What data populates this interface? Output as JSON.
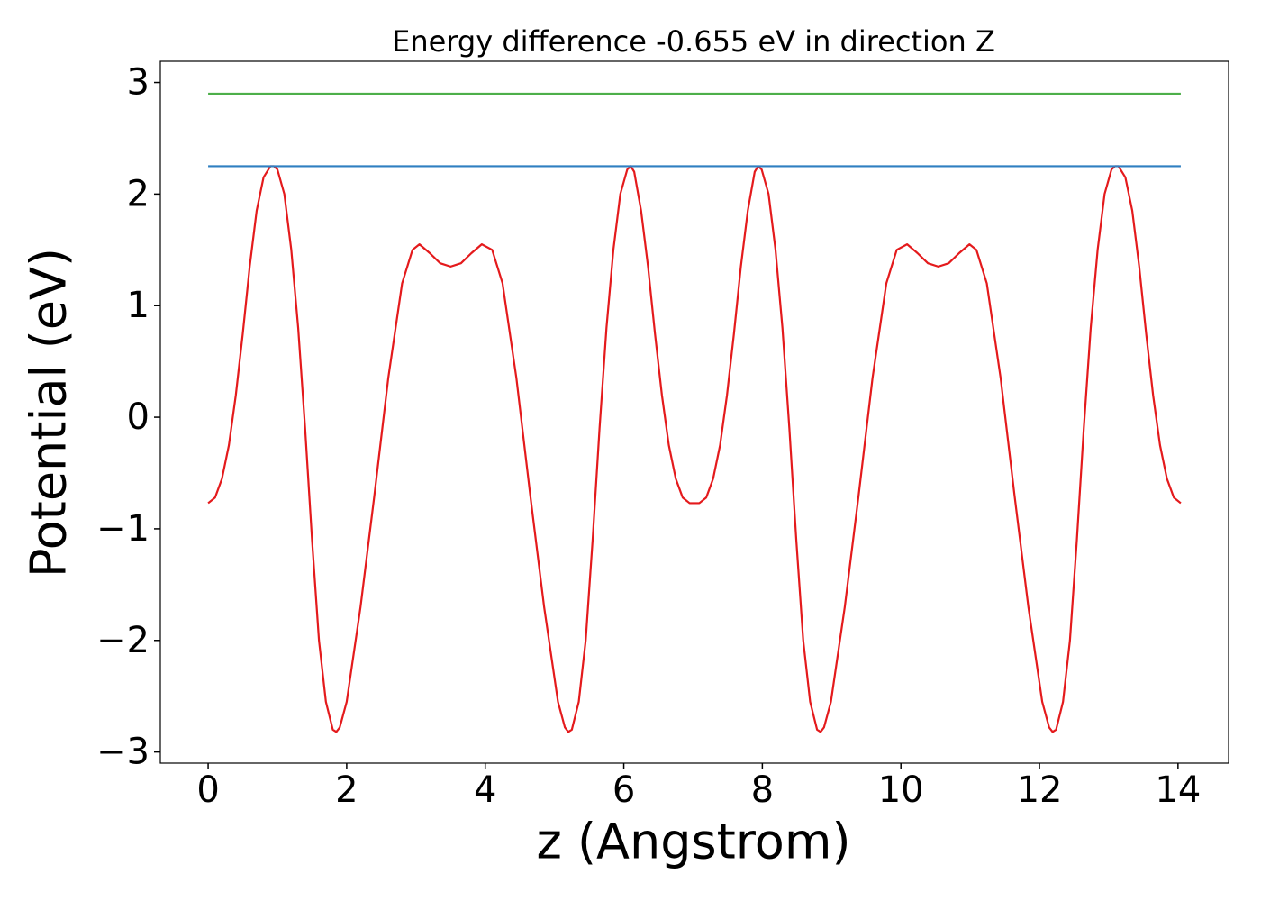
{
  "chart_data": {
    "type": "line",
    "title": "Energy difference -0.655 eV in direction Z",
    "xlabel": "z (Angstrom)",
    "ylabel": "Potential (eV)",
    "xlim": [
      -0.69,
      14.73
    ],
    "ylim": [
      -3.1,
      3.19
    ],
    "xticks": [
      0,
      2,
      4,
      6,
      8,
      10,
      12,
      14
    ],
    "yticks": [
      {
        "value": -3,
        "label": "−3"
      },
      {
        "value": -2,
        "label": "−2"
      },
      {
        "value": -1,
        "label": "−1"
      },
      0,
      1,
      2,
      3
    ],
    "grid": false,
    "series": [
      {
        "color": "#e41a1c",
        "x": [
          0,
          0.1,
          0.2,
          0.3,
          0.4,
          0.5,
          0.6,
          0.7,
          0.8,
          0.9,
          0.95,
          1.0,
          1.1,
          1.2,
          1.3,
          1.4,
          1.5,
          1.6,
          1.7,
          1.8,
          1.85,
          1.9,
          2.0,
          2.2,
          2.4,
          2.6,
          2.8,
          2.95,
          3.05,
          3.2,
          3.35,
          3.5,
          3.65,
          3.8,
          3.95,
          4.1,
          4.25,
          4.45,
          4.65,
          4.85,
          5.05,
          5.15,
          5.2,
          5.25,
          5.35,
          5.45,
          5.55,
          5.65,
          5.75,
          5.85,
          5.95,
          6.05,
          6.1,
          6.15,
          6.25,
          6.35,
          6.45,
          6.55,
          6.65,
          6.75,
          6.85,
          6.95,
          7.09,
          7.19,
          7.29,
          7.39,
          7.49,
          7.59,
          7.69,
          7.79,
          7.89,
          7.94,
          7.99,
          8.09,
          8.19,
          8.29,
          8.39,
          8.49,
          8.59,
          8.69,
          8.79,
          8.84,
          8.89,
          8.99,
          9.19,
          9.39,
          9.59,
          9.79,
          9.94,
          10.09,
          10.24,
          10.39,
          10.54,
          10.69,
          10.84,
          10.99,
          11.09,
          11.24,
          11.44,
          11.64,
          11.84,
          12.04,
          12.14,
          12.19,
          12.24,
          12.34,
          12.44,
          12.54,
          12.64,
          12.74,
          12.84,
          12.94,
          13.04,
          13.09,
          13.14,
          13.24,
          13.34,
          13.44,
          13.54,
          13.64,
          13.74,
          13.84,
          13.94,
          14.04
        ],
        "values": [
          -0.77,
          -0.72,
          -0.55,
          -0.25,
          0.2,
          0.75,
          1.35,
          1.85,
          2.15,
          2.25,
          2.25,
          2.22,
          2.0,
          1.5,
          0.8,
          -0.1,
          -1.1,
          -2.0,
          -2.55,
          -2.8,
          -2.82,
          -2.78,
          -2.55,
          -1.7,
          -0.7,
          0.35,
          1.2,
          1.5,
          1.55,
          1.47,
          1.38,
          1.35,
          1.38,
          1.47,
          1.55,
          1.5,
          1.2,
          0.35,
          -0.7,
          -1.7,
          -2.55,
          -2.78,
          -2.82,
          -2.8,
          -2.55,
          -2.0,
          -1.1,
          -0.1,
          0.8,
          1.5,
          2.0,
          2.22,
          2.25,
          2.2,
          1.85,
          1.35,
          0.75,
          0.2,
          -0.25,
          -0.55,
          -0.72,
          -0.77,
          -0.77,
          -0.72,
          -0.55,
          -0.25,
          0.2,
          0.75,
          1.35,
          1.85,
          2.2,
          2.25,
          2.22,
          2.0,
          1.5,
          0.8,
          -0.1,
          -1.1,
          -2.0,
          -2.55,
          -2.8,
          -2.82,
          -2.78,
          -2.55,
          -1.7,
          -0.7,
          0.35,
          1.2,
          1.5,
          1.55,
          1.47,
          1.38,
          1.35,
          1.38,
          1.47,
          1.55,
          1.5,
          1.2,
          0.35,
          -0.7,
          -1.7,
          -2.55,
          -2.78,
          -2.82,
          -2.8,
          -2.55,
          -2.0,
          -1.1,
          -0.1,
          0.8,
          1.5,
          2.0,
          2.22,
          2.25,
          2.25,
          2.15,
          1.85,
          1.35,
          0.75,
          0.2,
          -0.25,
          -0.55,
          -0.72,
          -0.77
        ]
      },
      {
        "color": "#2f7fc1",
        "x": [
          0,
          14.04
        ],
        "values": [
          2.25,
          2.25
        ]
      },
      {
        "color": "#4daf4a",
        "x": [
          0,
          14.04
        ],
        "values": [
          2.9,
          2.9
        ]
      }
    ]
  }
}
